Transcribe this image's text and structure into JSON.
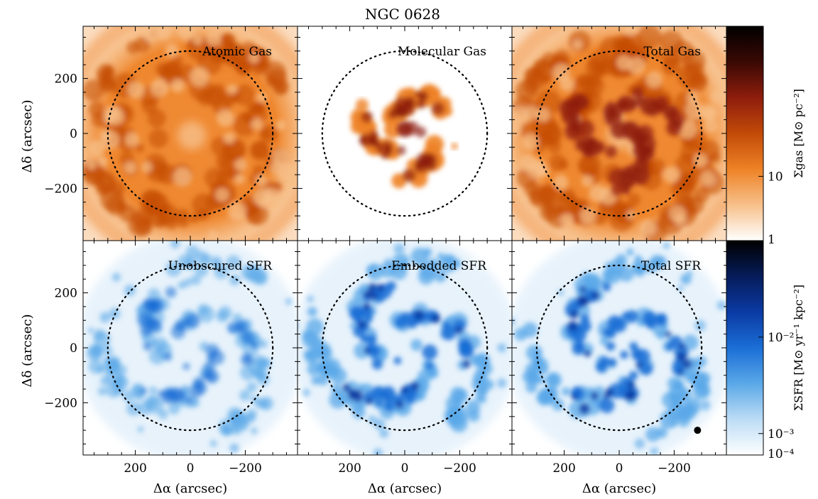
{
  "figure": {
    "title": "NGC 0628",
    "xlabel": "Δα (arcsec)",
    "ylabel": "Δδ (arcsec)"
  },
  "chart_data": {
    "type": "heatmap",
    "title": "NGC 0628",
    "xlabel": "Δα (arcsec)",
    "ylabel": "Δδ (arcsec)",
    "x_ticks": [
      200,
      0,
      -200
    ],
    "y_ticks": [
      200,
      0,
      -200
    ],
    "xlim": [
      390,
      -390
    ],
    "ylim": [
      -390,
      390
    ],
    "circle_radius_arcsec": 300,
    "beam_marker": {
      "panel": "Total SFR",
      "x": -285,
      "y": -300
    },
    "rows": [
      {
        "colormap": "orange",
        "colors": [
          "#ffffff",
          "#f7c08a",
          "#ee8226",
          "#c24a08",
          "#8e1d0d",
          "#3a0904",
          "#000000"
        ],
        "colorbar_label": "Σgas [M⊙ pc⁻²]",
        "colorbar_ticks": [
          "10",
          "1"
        ],
        "colorbar_tick_fracs": [
          0.3,
          0.0
        ],
        "panels": [
          {
            "label": "Atomic Gas",
            "map": "atomic"
          },
          {
            "label": "Molecular Gas",
            "map": "molecular"
          },
          {
            "label": "Total Gas",
            "map": "total_gas"
          }
        ]
      },
      {
        "colormap": "blue",
        "colors": [
          "#ffffff",
          "#bcdcf5",
          "#5aa8e8",
          "#1a6ed6",
          "#0b3aa3",
          "#061c5a",
          "#000000"
        ],
        "colorbar_label": "ΣSFR [M⊙ yr⁻¹ kpc⁻²]",
        "colorbar_ticks": [
          "10⁻²",
          "10⁻³",
          "10⁻⁴"
        ],
        "colorbar_tick_fracs": [
          0.55,
          0.1,
          0.0
        ],
        "panels": [
          {
            "label": "Unobscured SFR",
            "map": "unobscured"
          },
          {
            "label": "Embedded SFR",
            "map": "embedded"
          },
          {
            "label": "Total SFR",
            "map": "total_sfr"
          }
        ]
      }
    ]
  }
}
